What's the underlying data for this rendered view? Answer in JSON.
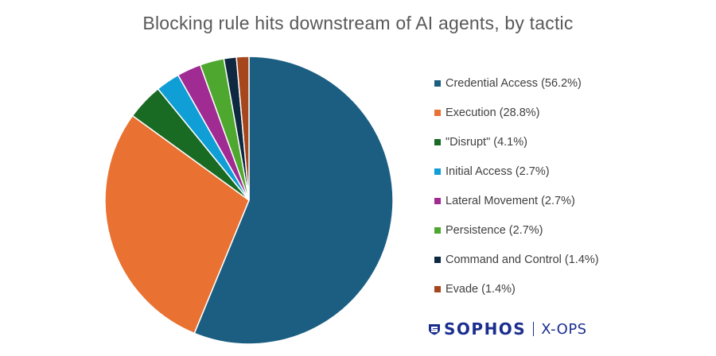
{
  "chart_data": {
    "type": "pie",
    "title": "Blocking rule hits downstream of AI agents, by tactic",
    "slices": [
      {
        "label": "Credential Access (56.2%)",
        "value": 56.2,
        "color": "#1b5e82"
      },
      {
        "label": "Execution (28.8%)",
        "value": 28.8,
        "color": "#e97132"
      },
      {
        "label": "\"Disrupt\" (4.1%)",
        "value": 4.1,
        "color": "#196b24"
      },
      {
        "label": "Initial Access (2.7%)",
        "value": 2.7,
        "color": "#0f9ed5"
      },
      {
        "label": "Lateral Movement (2.7%)",
        "value": 2.7,
        "color": "#a02b93"
      },
      {
        "label": "Persistence (2.7%)",
        "value": 2.7,
        "color": "#4ea72e"
      },
      {
        "label": "Command and Control (1.4%)",
        "value": 1.4,
        "color": "#0e2841"
      },
      {
        "label": "Evade (1.4%)",
        "value": 1.4,
        "color": "#a5461c"
      }
    ],
    "legend_position": "right"
  },
  "brand": {
    "name": "SOPHOS",
    "sub": "X-OPS",
    "color": "#1b2e8f"
  }
}
